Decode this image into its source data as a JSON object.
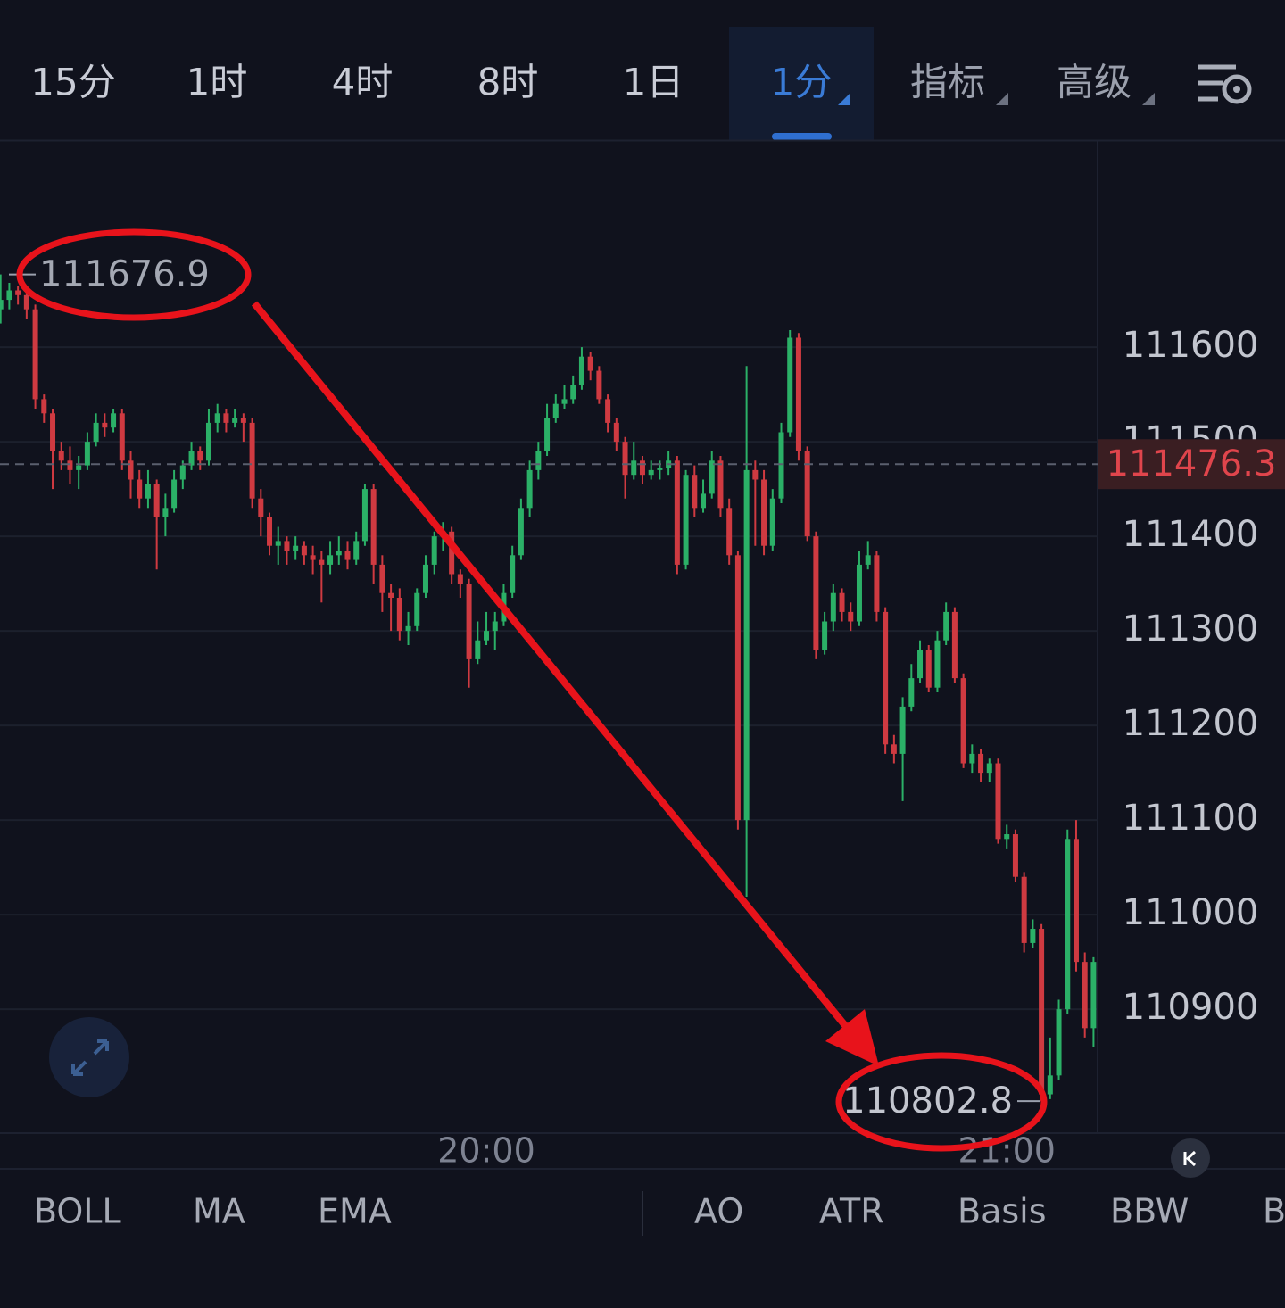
{
  "toolbar": {
    "tabs": [
      "15分",
      "1时",
      "4时",
      "8时",
      "1日"
    ],
    "active": "1分",
    "menus": [
      "指标",
      "高级"
    ]
  },
  "chart_data": {
    "type": "candlestick",
    "up_color": "#2bb067",
    "down_color": "#cf3a41",
    "grid": true,
    "ylim": [
      110769,
      111818
    ],
    "yticks": [
      110900,
      111000,
      111100,
      111200,
      111300,
      111400,
      111500,
      111600
    ],
    "current_price": 111476.3,
    "max_marker": 111676.9,
    "min_marker": 110802.8,
    "categories": [
      null,
      null,
      null,
      null,
      null,
      null,
      null,
      null,
      null,
      null,
      null,
      null,
      null,
      null,
      null,
      null,
      null,
      null,
      null,
      null,
      null,
      null,
      null,
      null,
      null,
      null,
      null,
      null,
      null,
      null,
      null,
      null,
      null,
      null,
      null,
      null,
      null,
      null,
      null,
      null,
      null,
      null,
      null,
      null,
      null,
      null,
      null,
      null,
      null,
      null,
      null,
      null,
      null,
      null,
      null,
      null,
      "20:00",
      null,
      null,
      null,
      null,
      null,
      null,
      null,
      null,
      null,
      null,
      null,
      null,
      null,
      null,
      null,
      null,
      null,
      null,
      null,
      null,
      null,
      null,
      null,
      null,
      null,
      null,
      null,
      null,
      null,
      null,
      null,
      null,
      null,
      null,
      null,
      null,
      null,
      null,
      null,
      null,
      null,
      null,
      null,
      null,
      null,
      null,
      null,
      null,
      null,
      null,
      null,
      null,
      null,
      null,
      null,
      null,
      null,
      null,
      null,
      "21:00",
      null,
      null,
      null,
      null,
      null,
      null,
      null,
      null,
      null,
      null
    ],
    "open": [
      111640,
      111650,
      111660,
      111655,
      111640,
      111545,
      111530,
      111490,
      111480,
      111470,
      111475,
      111500,
      111520,
      111515,
      111530,
      111480,
      111460,
      111440,
      111455,
      111420,
      111430,
      111460,
      111475,
      111490,
      111480,
      111520,
      111530,
      111520,
      111525,
      111520,
      111440,
      111420,
      111390,
      111395,
      111385,
      111390,
      111380,
      111375,
      111370,
      111380,
      111385,
      111375,
      111395,
      111450,
      111370,
      111340,
      111335,
      111300,
      111305,
      111340,
      111370,
      111400,
      111405,
      111360,
      111350,
      111270,
      111290,
      111300,
      111310,
      111340,
      111380,
      111430,
      111470,
      111490,
      111525,
      111540,
      111545,
      111560,
      111590,
      111575,
      111545,
      111520,
      111500,
      111465,
      111480,
      111465,
      111470,
      111472,
      111480,
      111370,
      111465,
      111430,
      111445,
      111480,
      111430,
      111380,
      111100,
      111470,
      111460,
      111390,
      111440,
      111510,
      111610,
      111490,
      111400,
      111280,
      111310,
      111340,
      111320,
      111310,
      111370,
      111380,
      111320,
      111180,
      111170,
      111220,
      111250,
      111280,
      111240,
      111290,
      111320,
      111250,
      111160,
      111170,
      111150,
      111160,
      111080,
      111085,
      111040,
      110970,
      110985,
      110810,
      110830,
      110900,
      111080,
      110950,
      110880
    ],
    "high": [
      111676.9,
      111668,
      111665,
      111660,
      111645,
      111550,
      111535,
      111500,
      111495,
      111485,
      111510,
      111530,
      111530,
      111535,
      111535,
      111490,
      111470,
      111470,
      111460,
      111445,
      111470,
      111480,
      111500,
      111495,
      111535,
      111540,
      111535,
      111535,
      111530,
      111525,
      111450,
      111425,
      111410,
      111400,
      111400,
      111395,
      111390,
      111385,
      111395,
      111400,
      111395,
      111405,
      111455,
      111455,
      111380,
      111350,
      111345,
      111320,
      111345,
      111380,
      111405,
      111415,
      111410,
      111365,
      111355,
      111310,
      111320,
      111320,
      111350,
      111390,
      111440,
      111480,
      111500,
      111540,
      111550,
      111560,
      111570,
      111600,
      111595,
      111580,
      111550,
      111525,
      111505,
      111500,
      111485,
      111480,
      111480,
      111490,
      111485,
      111470,
      111475,
      111460,
      111490,
      111485,
      111440,
      111385,
      111580,
      111480,
      111470,
      111450,
      111520,
      111618,
      111615,
      111495,
      111405,
      111320,
      111350,
      111345,
      111330,
      111385,
      111395,
      111385,
      111325,
      111190,
      111230,
      111265,
      111290,
      111285,
      111300,
      111330,
      111325,
      111255,
      111180,
      111175,
      111165,
      111165,
      111095,
      111090,
      111045,
      110995,
      110990,
      110870,
      110910,
      111090,
      111100,
      110960,
      110955
    ],
    "low": [
      111625,
      111640,
      111645,
      111630,
      111535,
      111520,
      111450,
      111470,
      111455,
      111450,
      111470,
      111495,
      111505,
      111510,
      111470,
      111440,
      111430,
      111430,
      111365,
      111400,
      111425,
      111450,
      111470,
      111470,
      111475,
      111510,
      111510,
      111515,
      111500,
      111430,
      111400,
      111380,
      111370,
      111370,
      111375,
      111370,
      111360,
      111330,
      111360,
      111370,
      111365,
      111370,
      111390,
      111350,
      111320,
      111300,
      111290,
      111285,
      111300,
      111335,
      111360,
      111385,
      111350,
      111335,
      111240,
      111265,
      111285,
      111280,
      111305,
      111335,
      111375,
      111420,
      111460,
      111485,
      111520,
      111535,
      111540,
      111555,
      111565,
      111540,
      111510,
      111490,
      111440,
      111460,
      111455,
      111460,
      111460,
      111465,
      111360,
      111365,
      111420,
      111425,
      111440,
      111420,
      111370,
      111090,
      111019,
      111390,
      111380,
      111385,
      111435,
      111505,
      111480,
      111395,
      111270,
      111275,
      111300,
      111310,
      111300,
      111305,
      111365,
      111310,
      111170,
      111160,
      111120,
      111215,
      111245,
      111235,
      111235,
      111285,
      111245,
      111155,
      111150,
      111140,
      111140,
      111075,
      111070,
      111035,
      110960,
      110965,
      110802.8,
      110805,
      110825,
      110895,
      110940,
      110870,
      110860
    ],
    "close": [
      111650,
      111660,
      111655,
      111640,
      111545,
      111530,
      111490,
      111480,
      111470,
      111475,
      111500,
      111520,
      111515,
      111530,
      111480,
      111460,
      111440,
      111455,
      111420,
      111430,
      111460,
      111475,
      111490,
      111480,
      111520,
      111530,
      111520,
      111525,
      111520,
      111440,
      111420,
      111390,
      111395,
      111385,
      111390,
      111380,
      111375,
      111370,
      111380,
      111385,
      111375,
      111395,
      111450,
      111370,
      111340,
      111335,
      111300,
      111305,
      111340,
      111370,
      111400,
      111405,
      111360,
      111350,
      111270,
      111290,
      111300,
      111310,
      111340,
      111380,
      111430,
      111470,
      111490,
      111525,
      111540,
      111545,
      111560,
      111590,
      111575,
      111545,
      111520,
      111500,
      111465,
      111480,
      111465,
      111470,
      111472,
      111480,
      111370,
      111465,
      111430,
      111445,
      111480,
      111430,
      111380,
      111100,
      111470,
      111460,
      111390,
      111440,
      111510,
      111610,
      111490,
      111400,
      111280,
      111310,
      111340,
      111320,
      111310,
      111370,
      111380,
      111320,
      111180,
      111170,
      111220,
      111250,
      111280,
      111240,
      111290,
      111320,
      111250,
      111160,
      111170,
      111150,
      111160,
      111080,
      111085,
      111040,
      110970,
      110985,
      110810,
      110830,
      110900,
      111080,
      110950,
      110880,
      110950
    ]
  },
  "indicator_tabs": {
    "main": [
      "BOLL",
      "MA",
      "EMA"
    ],
    "sub": [
      "AO",
      "ATR",
      "Basis",
      "BBW",
      "B"
    ]
  }
}
